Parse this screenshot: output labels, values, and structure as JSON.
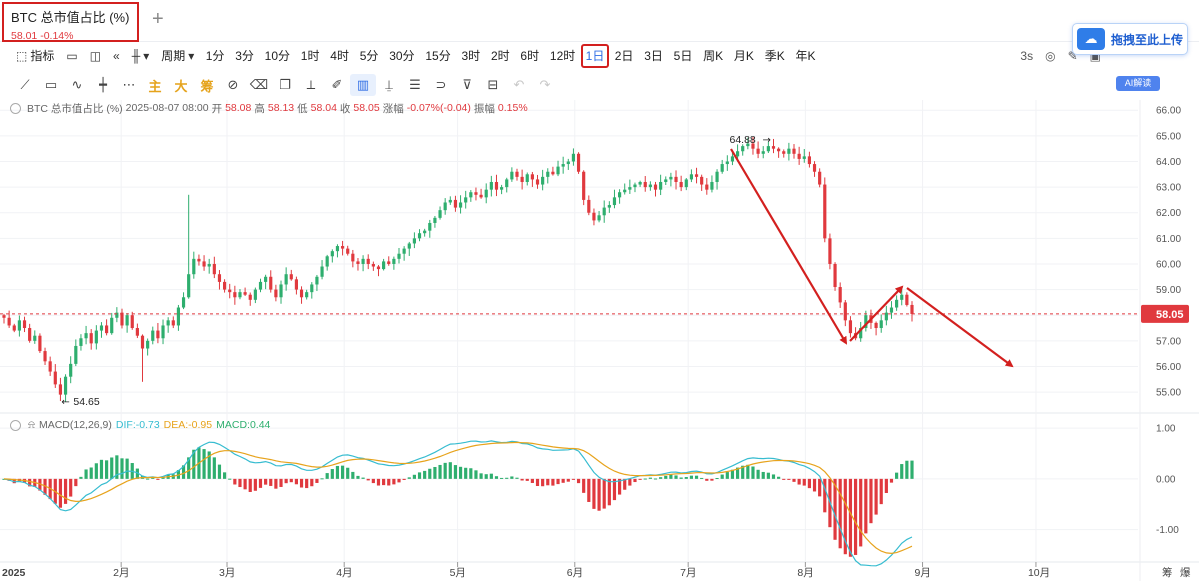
{
  "tab": {
    "title": "BTC 总市值占比 (%)",
    "quote": "58.01  -0.14%",
    "add": "+"
  },
  "upload": {
    "label": "拖拽至此上传",
    "icon": "cloud-icon"
  },
  "toolbar": {
    "indicator": "指标",
    "cycle": "周期",
    "periods": [
      "1分",
      "3分",
      "10分",
      "1时",
      "4时",
      "5分",
      "30分",
      "15分",
      "3时",
      "2时",
      "6时",
      "12时",
      "1日",
      "2日",
      "3日",
      "5日",
      "周K",
      "月K",
      "季K",
      "年K"
    ],
    "active_period": "1日",
    "refresh": "3s"
  },
  "drawing_tools": {
    "main": "主",
    "big": "大",
    "chips": "筹"
  },
  "ai_badge": "AI解读",
  "legend": {
    "name": "BTC 总市值占比 (%)",
    "date": "2025-08-07 08:00",
    "open_label": "开",
    "open": "58.08",
    "high_label": "高",
    "high": "58.13",
    "low_label": "低",
    "low": "58.04",
    "close_label": "收",
    "close": "58.05",
    "change_label": "涨幅",
    "change": "-0.07%(-0.04)",
    "amp_label": "振幅",
    "amp": "0.15%"
  },
  "macd_legend": {
    "name": "MACD(12,26,9)",
    "dif": "DIF:-0.73",
    "dea": "DEA:-0.95",
    "macd": "MACD:0.44"
  },
  "colors": {
    "up": "#2eae6e",
    "down": "#e0393e",
    "dif": "#36bcd0",
    "dea": "#e7a31c",
    "annotation": "#d3201f"
  },
  "chart_data": {
    "type": "candlestick",
    "price_axis": {
      "ticks": [
        55,
        56,
        57,
        58,
        59,
        60,
        61,
        62,
        63,
        64,
        65,
        66
      ],
      "min": 54.3,
      "max": 66.4
    },
    "macd_axis": {
      "ticks": [
        -1,
        0,
        1
      ],
      "tick_labels": [
        "-1.00",
        "0.00",
        "1.00"
      ],
      "min": -1.6,
      "max": 1.2
    },
    "x_labels": [
      "2025",
      "2月",
      "3月",
      "4月",
      "5月",
      "6月",
      "7月",
      "8月",
      "9月",
      "10月"
    ],
    "x_domain_days": [
      0,
      300
    ],
    "x_label_days": [
      0,
      31,
      59,
      90,
      120,
      151,
      181,
      212,
      243,
      273
    ],
    "right_axis_extra": [
      "筹",
      "爆"
    ],
    "current_price": 58.05,
    "high_marker": {
      "value": 64.88,
      "label": "64.88"
    },
    "low_marker": {
      "value": 54.65,
      "label": "54.65"
    },
    "closes": [
      57.9,
      57.6,
      57.4,
      57.8,
      57.5,
      57.0,
      57.2,
      56.6,
      56.2,
      55.8,
      55.3,
      54.9,
      55.6,
      56.1,
      56.8,
      57.1,
      57.3,
      56.9,
      57.4,
      57.6,
      57.3,
      57.9,
      58.1,
      57.6,
      58.0,
      57.5,
      57.2,
      56.7,
      57.0,
      57.4,
      57.1,
      57.6,
      57.8,
      57.6,
      58.3,
      58.7,
      59.6,
      60.2,
      60.1,
      59.9,
      60.0,
      59.6,
      59.3,
      59.0,
      58.9,
      58.7,
      58.9,
      58.8,
      58.6,
      59.0,
      59.3,
      59.5,
      59.0,
      58.7,
      59.2,
      59.6,
      59.4,
      59.0,
      58.7,
      58.9,
      59.2,
      59.5,
      59.9,
      60.3,
      60.5,
      60.7,
      60.6,
      60.4,
      60.1,
      60.0,
      60.2,
      60.0,
      59.9,
      59.8,
      60.1,
      60.0,
      60.2,
      60.4,
      60.6,
      60.8,
      61.0,
      61.2,
      61.3,
      61.6,
      61.8,
      62.1,
      62.4,
      62.5,
      62.2,
      62.4,
      62.6,
      62.8,
      62.7,
      62.6,
      62.9,
      63.2,
      62.9,
      63.0,
      63.3,
      63.6,
      63.4,
      63.2,
      63.5,
      63.3,
      63.1,
      63.4,
      63.6,
      63.5,
      63.8,
      63.9,
      64.0,
      64.3,
      63.6,
      62.5,
      62.0,
      61.7,
      61.9,
      62.2,
      62.3,
      62.6,
      62.8,
      62.9,
      63.0,
      63.1,
      63.2,
      63.0,
      63.1,
      62.9,
      63.2,
      63.3,
      63.4,
      63.2,
      63.0,
      63.3,
      63.5,
      63.4,
      63.1,
      62.9,
      63.2,
      63.6,
      63.9,
      64.0,
      64.2,
      64.4,
      64.6,
      64.7,
      64.5,
      64.3,
      64.4,
      64.6,
      64.5,
      64.4,
      64.3,
      64.5,
      64.3,
      64.1,
      64.2,
      63.9,
      63.6,
      63.1,
      61.0,
      60.0,
      59.1,
      58.5,
      57.8,
      57.3,
      57.1,
      57.5,
      58.0,
      57.7,
      57.5,
      57.8,
      58.1,
      58.3,
      58.6,
      58.8,
      58.4,
      58.05
    ]
  }
}
